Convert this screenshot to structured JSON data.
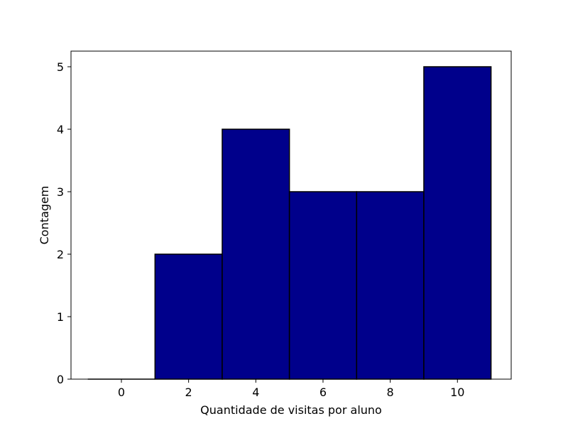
{
  "chart_data": {
    "type": "bar",
    "chart_kind": "histogram",
    "xlabel": "Quantidade de visitas por aluno",
    "ylabel": "Contagem",
    "xlim": [
      -1.5,
      11.6
    ],
    "ylim": [
      0,
      5.25
    ],
    "x_ticks": [
      0,
      2,
      4,
      6,
      8,
      10
    ],
    "y_ticks": [
      0,
      1,
      2,
      3,
      4,
      5
    ],
    "bins": [
      {
        "from": -1,
        "to": 1,
        "count": 0
      },
      {
        "from": 1,
        "to": 3,
        "count": 2
      },
      {
        "from": 3,
        "to": 5,
        "count": 4
      },
      {
        "from": 5,
        "to": 7,
        "count": 3
      },
      {
        "from": 7,
        "to": 9,
        "count": 3
      },
      {
        "from": 9,
        "to": 11,
        "count": 5
      }
    ],
    "bar_color": "#00008b",
    "edge_color": "#000000",
    "grid": false,
    "legend": "none"
  }
}
